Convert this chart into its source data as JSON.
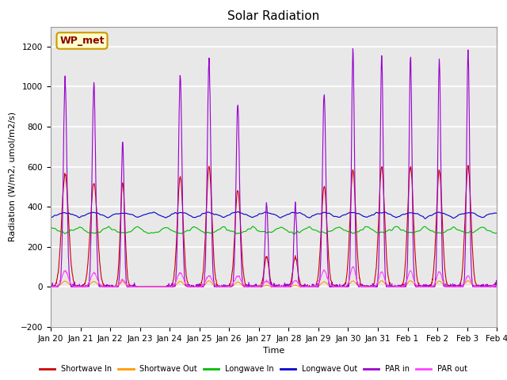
{
  "title": "Solar Radiation",
  "ylabel": "Radiation (W/m2, umol/m2/s)",
  "xlabel": "Time",
  "n_days": 15.5,
  "ylim": [
    -200,
    1300
  ],
  "yticks": [
    -200,
    0,
    200,
    400,
    600,
    800,
    1000,
    1200
  ],
  "xtick_labels": [
    "Jan 20",
    "Jan 21",
    "Jan 22",
    "Jan 23",
    "Jan 24",
    "Jan 25",
    "Jan 26",
    "Jan 27",
    "Jan 28",
    "Jan 29",
    "Jan 30",
    "Jan 31",
    "Feb 1",
    "Feb 2",
    "Feb 3",
    "Feb 4"
  ],
  "series": {
    "shortwave_in": {
      "color": "#cc0000",
      "label": "Shortwave In"
    },
    "shortwave_out": {
      "color": "#ff9900",
      "label": "Shortwave Out"
    },
    "longwave_in": {
      "color": "#00bb00",
      "label": "Longwave In"
    },
    "longwave_out": {
      "color": "#0000cc",
      "label": "Longwave Out"
    },
    "par_in": {
      "color": "#9900cc",
      "label": "PAR in"
    },
    "par_out": {
      "color": "#ff44ff",
      "label": "PAR out"
    }
  },
  "annotation": {
    "text": "WP_met",
    "facecolor": "#ffffcc",
    "edgecolor": "#cc9900",
    "fontcolor": "#880000",
    "fontsize": 9
  },
  "fig_facecolor": "#ffffff",
  "axes_facecolor": "#e8e8e8",
  "grid_color": "#ffffff",
  "title_fontsize": 11,
  "axis_label_fontsize": 8,
  "tick_fontsize": 7.5,
  "linewidth": 0.8,
  "sw_in_peaks": [
    560,
    520,
    520,
    0,
    550,
    600,
    480,
    150,
    150,
    500,
    580,
    600,
    600,
    580,
    600,
    20
  ],
  "par_in_peaks": [
    1040,
    1010,
    730,
    0,
    1050,
    1125,
    910,
    415,
    415,
    960,
    1180,
    1150,
    1150,
    1130,
    1180,
    20
  ],
  "par_out_peaks": [
    80,
    70,
    35,
    0,
    70,
    55,
    55,
    30,
    30,
    80,
    100,
    75,
    80,
    75,
    55,
    5
  ],
  "sw_widths": [
    0.12,
    0.12,
    0.08,
    0.12,
    0.1,
    0.1,
    0.1,
    0.08,
    0.08,
    0.1,
    0.1,
    0.1,
    0.1,
    0.1,
    0.1,
    0.1
  ],
  "par_widths": [
    0.06,
    0.06,
    0.05,
    0.06,
    0.06,
    0.06,
    0.06,
    0.05,
    0.05,
    0.06,
    0.05,
    0.05,
    0.05,
    0.05,
    0.05,
    0.05
  ]
}
